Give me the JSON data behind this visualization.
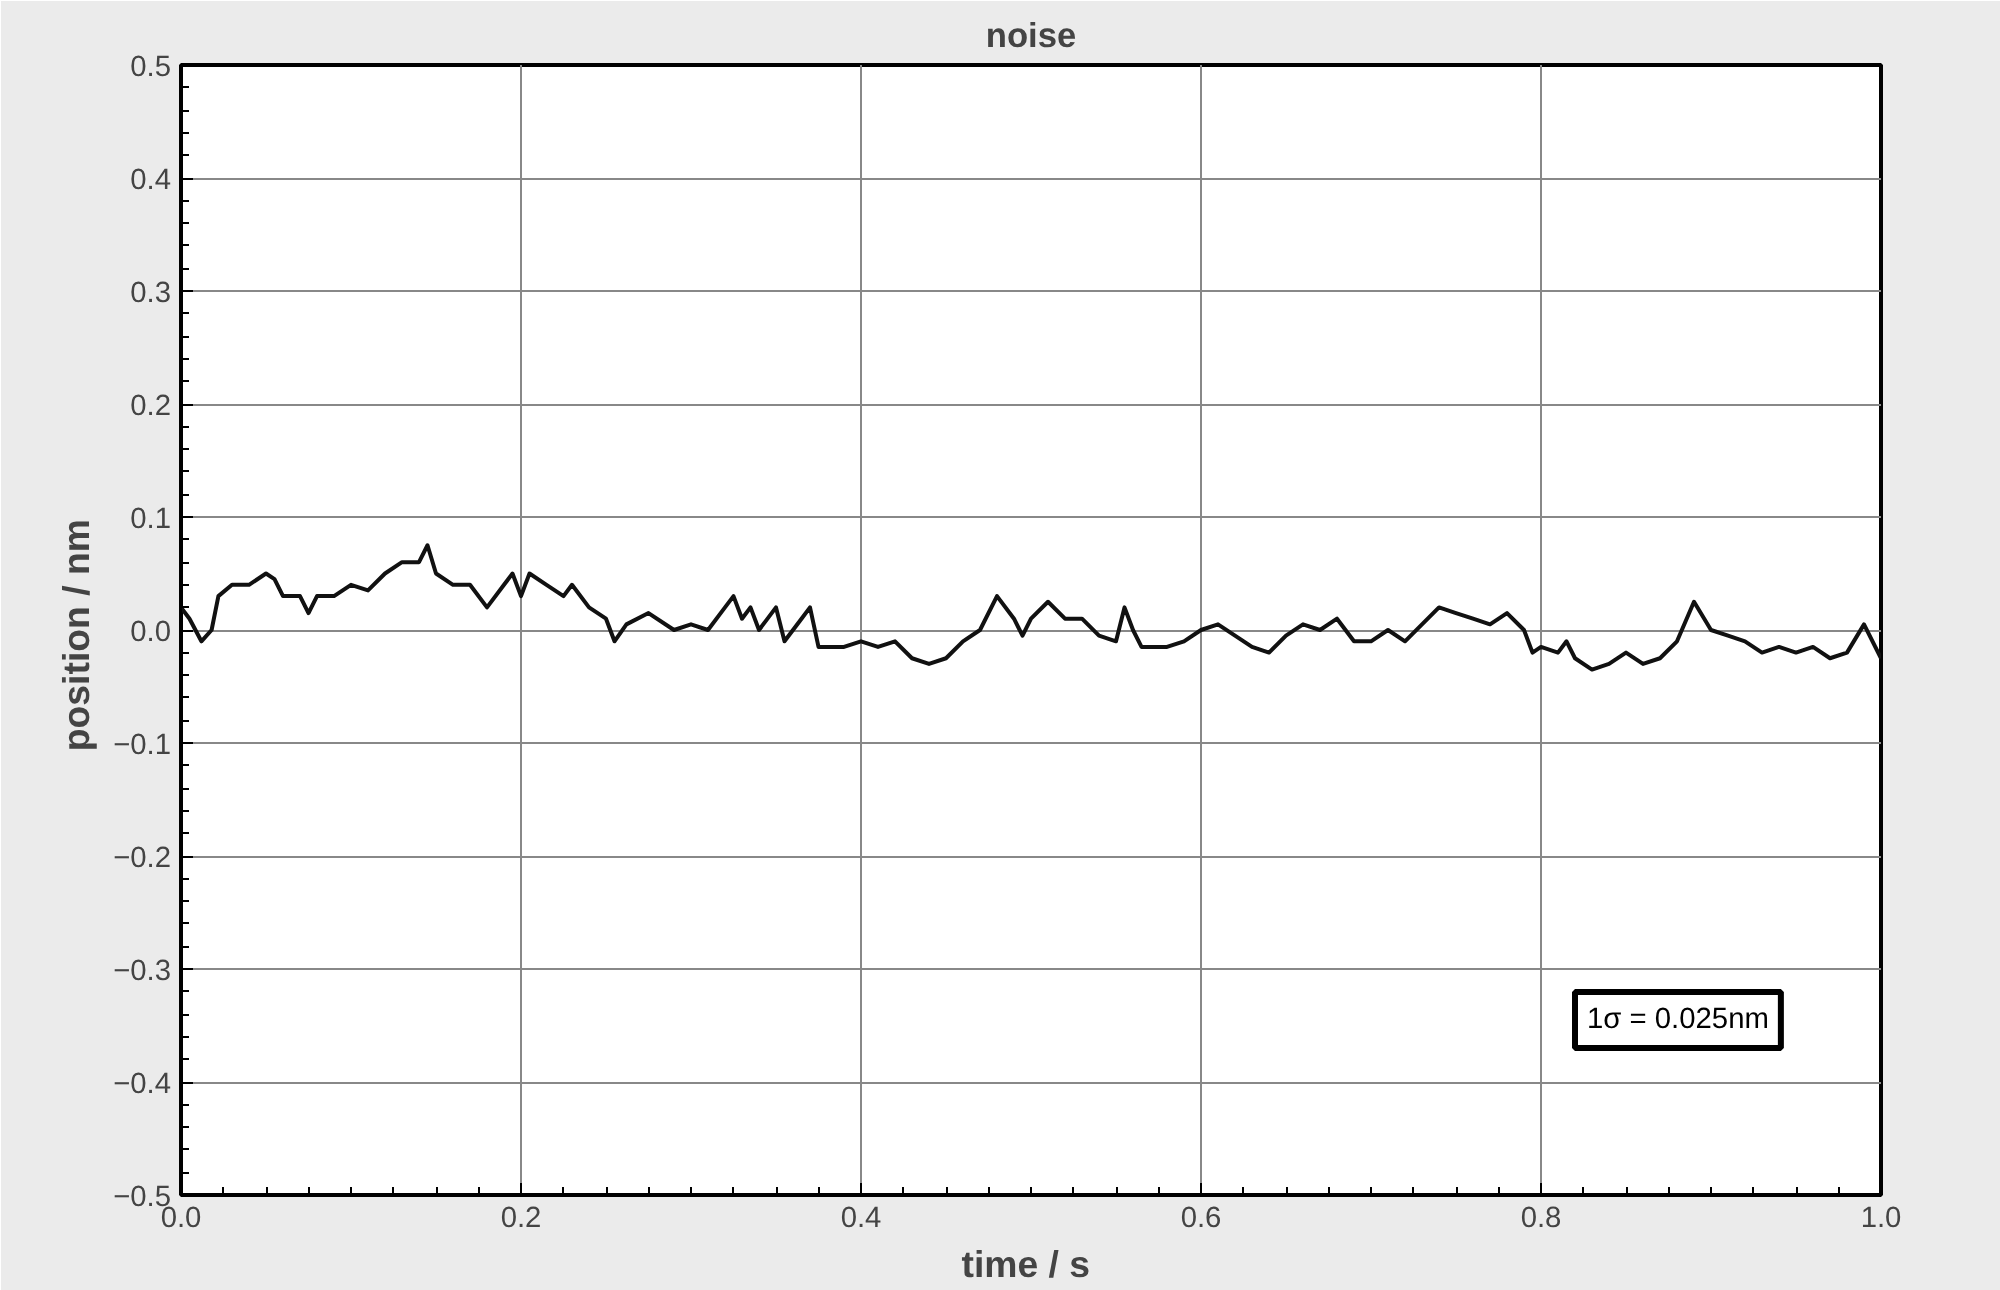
{
  "chart_data": {
    "type": "line",
    "title": "noise",
    "xlabel": "time  / s",
    "ylabel": "position  / nm",
    "x": [
      0.0,
      0.005,
      0.012,
      0.018,
      0.022,
      0.03,
      0.04,
      0.05,
      0.055,
      0.06,
      0.07,
      0.075,
      0.08,
      0.09,
      0.1,
      0.11,
      0.12,
      0.13,
      0.14,
      0.145,
      0.15,
      0.16,
      0.17,
      0.18,
      0.19,
      0.195,
      0.2,
      0.205,
      0.215,
      0.225,
      0.23,
      0.24,
      0.25,
      0.255,
      0.262,
      0.275,
      0.29,
      0.3,
      0.31,
      0.32,
      0.325,
      0.33,
      0.335,
      0.34,
      0.35,
      0.355,
      0.365,
      0.37,
      0.375,
      0.39,
      0.4,
      0.41,
      0.42,
      0.43,
      0.44,
      0.45,
      0.46,
      0.47,
      0.48,
      0.49,
      0.495,
      0.5,
      0.51,
      0.52,
      0.53,
      0.54,
      0.55,
      0.555,
      0.56,
      0.565,
      0.58,
      0.59,
      0.6,
      0.61,
      0.62,
      0.63,
      0.64,
      0.65,
      0.66,
      0.67,
      0.68,
      0.69,
      0.7,
      0.71,
      0.72,
      0.73,
      0.74,
      0.75,
      0.76,
      0.77,
      0.78,
      0.79,
      0.795,
      0.8,
      0.81,
      0.815,
      0.82,
      0.83,
      0.84,
      0.85,
      0.86,
      0.87,
      0.88,
      0.89,
      0.9,
      0.91,
      0.92,
      0.93,
      0.94,
      0.95,
      0.96,
      0.97,
      0.98,
      0.99,
      1.0
    ],
    "series": [
      {
        "color": "#111111",
        "values": [
          0.02,
          0.01,
          -0.01,
          0.0,
          0.03,
          0.04,
          0.04,
          0.05,
          0.045,
          0.03,
          0.03,
          0.015,
          0.03,
          0.03,
          0.04,
          0.035,
          0.05,
          0.06,
          0.06,
          0.075,
          0.05,
          0.04,
          0.04,
          0.02,
          0.04,
          0.05,
          0.03,
          0.05,
          0.04,
          0.03,
          0.04,
          0.02,
          0.01,
          -0.01,
          0.005,
          0.015,
          0.0,
          0.005,
          0.0,
          0.02,
          0.03,
          0.01,
          0.02,
          0.0,
          0.02,
          -0.01,
          0.01,
          0.02,
          -0.015,
          -0.015,
          -0.01,
          -0.015,
          -0.01,
          -0.025,
          -0.03,
          -0.025,
          -0.01,
          0.0,
          0.03,
          0.01,
          -0.005,
          0.01,
          0.025,
          0.01,
          0.01,
          -0.005,
          -0.01,
          0.02,
          0.0,
          -0.015,
          -0.015,
          -0.01,
          0.0,
          0.005,
          -0.005,
          -0.015,
          -0.02,
          -0.005,
          0.005,
          0.0,
          0.01,
          -0.01,
          -0.01,
          0.0,
          -0.01,
          0.005,
          0.02,
          0.015,
          0.01,
          0.005,
          0.015,
          0.0,
          -0.02,
          -0.015,
          -0.02,
          -0.01,
          -0.025,
          -0.035,
          -0.03,
          -0.02,
          -0.03,
          -0.025,
          -0.01,
          0.025,
          0.0,
          -0.005,
          -0.01,
          -0.02,
          -0.015,
          -0.02,
          -0.015,
          -0.025,
          -0.02,
          0.005,
          -0.025
        ]
      }
    ],
    "xlim": [
      0.0,
      1.0
    ],
    "xticks": [
      {
        "value": 0,
        "label": "0.0"
      },
      0.2,
      0.4,
      0.6,
      0.8,
      {
        "value": 1,
        "label": "1.0"
      }
    ],
    "ylim": [
      -0.5,
      0.5
    ],
    "yticks": [
      -0.5,
      -0.4,
      -0.3,
      -0.2,
      -0.1,
      {
        "value": 0,
        "label": "0.0"
      },
      0.1,
      0.2,
      0.3,
      0.4,
      0.5
    ],
    "grid": true,
    "marker": "none",
    "line_style": "solid",
    "annotations": [
      "1σ = 0.025nm"
    ]
  }
}
